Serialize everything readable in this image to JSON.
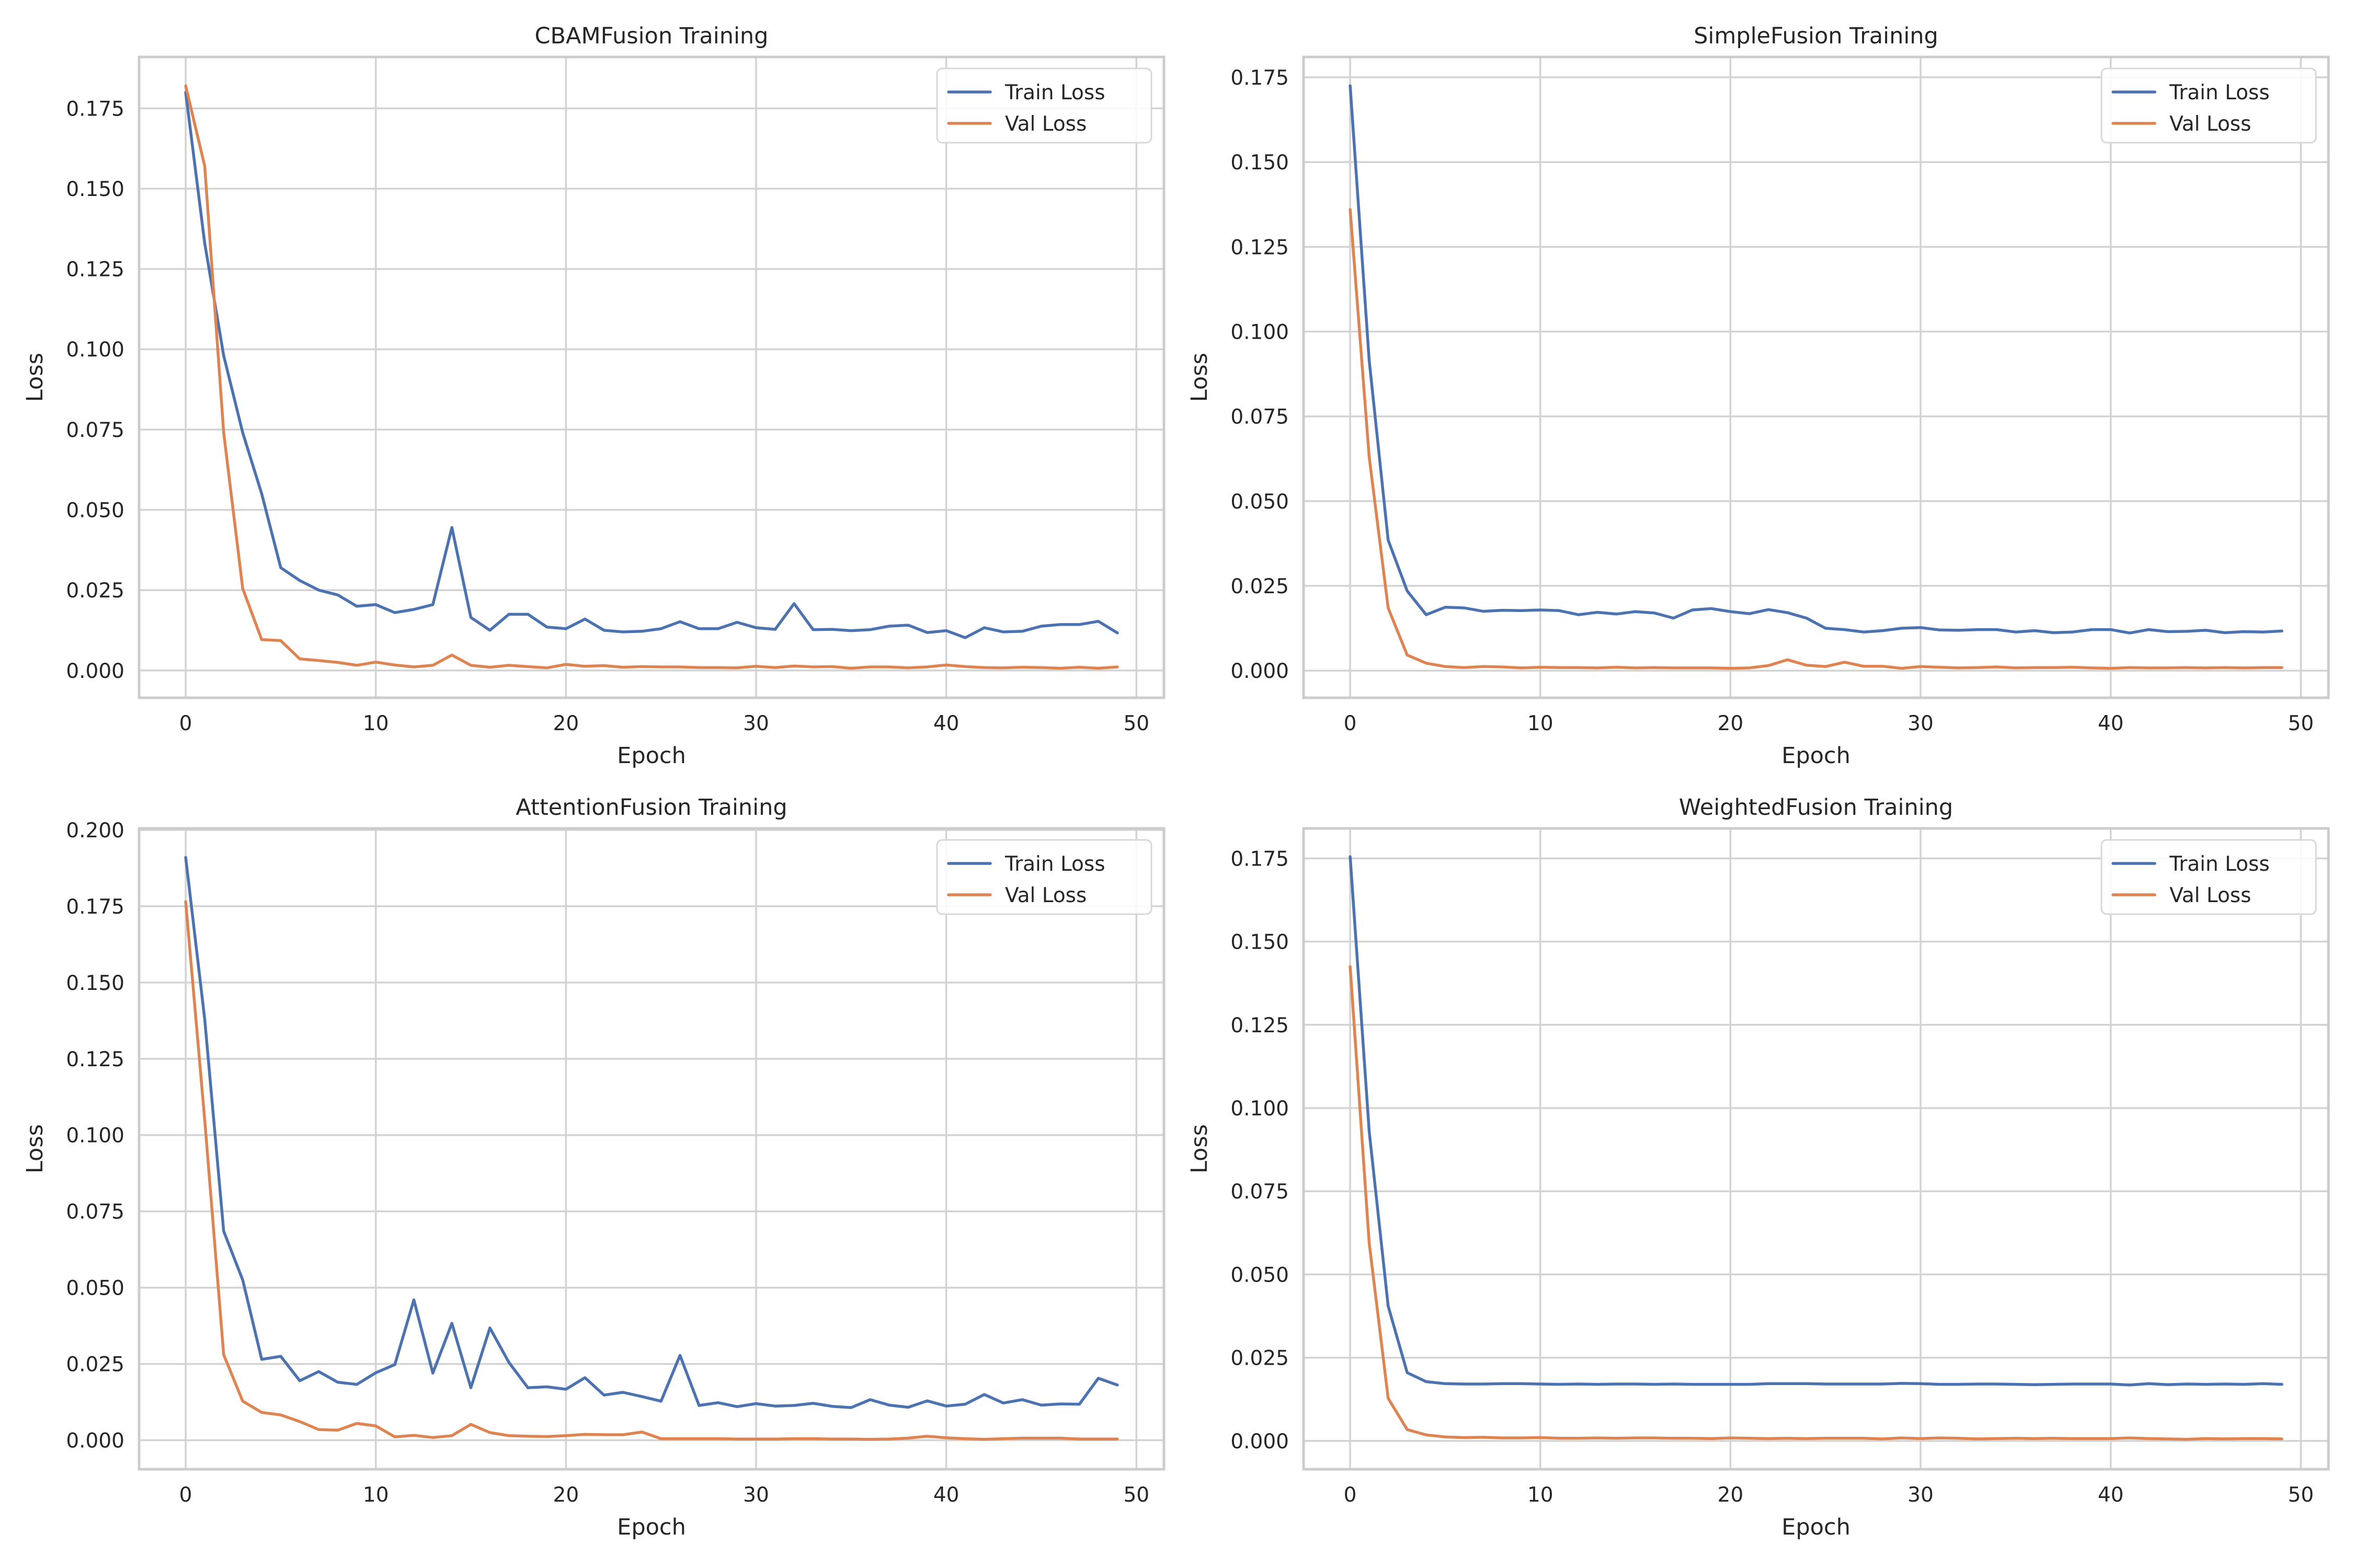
{
  "colors": {
    "train": "#4c72b0",
    "val": "#dd8452"
  },
  "legend": {
    "train_label": "Train Loss",
    "val_label": "Val Loss",
    "placement": "top-right"
  },
  "chart_data": [
    {
      "type": "line",
      "title": "CBAMFusion Training",
      "xlabel": "Epoch",
      "ylabel": "Loss",
      "xlim": [
        -2.45,
        51.45
      ],
      "ylim": [
        -0.0085,
        0.191
      ],
      "xticks": [
        0,
        10,
        20,
        30,
        40,
        50
      ],
      "yticks": [
        0,
        0.025,
        0.05,
        0.075,
        0.1,
        0.125,
        0.15,
        0.175
      ],
      "ytick_labels": [
        "0.000",
        "0.025",
        "0.050",
        "0.075",
        "0.100",
        "0.125",
        "0.150",
        "0.175"
      ],
      "grid": true,
      "series": [
        {
          "name": "Train Loss",
          "values": [
            0.18,
            0.133,
            0.098,
            0.074,
            0.055,
            0.032,
            0.028,
            0.025,
            0.0235,
            0.02,
            0.0205,
            0.018,
            0.019,
            0.0205,
            0.0445,
            0.0165,
            0.0125,
            0.0175,
            0.0175,
            0.0135,
            0.013,
            0.016,
            0.0125,
            0.012,
            0.0122,
            0.013,
            0.0152,
            0.013,
            0.013,
            0.015,
            0.0133,
            0.0128,
            0.0208,
            0.0127,
            0.0128,
            0.0124,
            0.0127,
            0.0138,
            0.0141,
            0.0118,
            0.0124,
            0.0102,
            0.0133,
            0.012,
            0.0122,
            0.0138,
            0.0143,
            0.0143,
            0.0153,
            0.0117
          ]
        },
        {
          "name": "Val Loss",
          "values": [
            0.182,
            0.157,
            0.074,
            0.0255,
            0.0096,
            0.0093,
            0.0036,
            0.0031,
            0.0025,
            0.0016,
            0.0026,
            0.0017,
            0.0011,
            0.0016,
            0.0048,
            0.0016,
            0.001,
            0.0016,
            0.0012,
            0.0008,
            0.0019,
            0.0013,
            0.0015,
            0.001,
            0.0012,
            0.0011,
            0.0011,
            0.0009,
            0.0009,
            0.0008,
            0.0013,
            0.0009,
            0.0014,
            0.0011,
            0.0012,
            0.0007,
            0.0011,
            0.0011,
            0.0008,
            0.0011,
            0.0017,
            0.0012,
            0.0009,
            0.0008,
            0.001,
            0.0009,
            0.0007,
            0.001,
            0.0007,
            0.0011
          ]
        }
      ]
    },
    {
      "type": "line",
      "title": "SimpleFusion Training",
      "xlabel": "Epoch",
      "ylabel": "Loss",
      "xlim": [
        -2.45,
        51.45
      ],
      "ylim": [
        -0.008,
        0.181
      ],
      "xticks": [
        0,
        10,
        20,
        30,
        40,
        50
      ],
      "yticks": [
        0,
        0.025,
        0.05,
        0.075,
        0.1,
        0.125,
        0.15,
        0.175
      ],
      "ytick_labels": [
        "0.000",
        "0.025",
        "0.050",
        "0.075",
        "0.100",
        "0.125",
        "0.150",
        "0.175"
      ],
      "grid": true,
      "series": [
        {
          "name": "Train Loss",
          "values": [
            0.1725,
            0.0915,
            0.0385,
            0.0235,
            0.0165,
            0.0187,
            0.0185,
            0.0175,
            0.0178,
            0.0177,
            0.0179,
            0.0177,
            0.0165,
            0.0172,
            0.0167,
            0.0174,
            0.017,
            0.0155,
            0.0179,
            0.0183,
            0.0174,
            0.0168,
            0.018,
            0.0171,
            0.0155,
            0.0125,
            0.0121,
            0.0114,
            0.0118,
            0.0125,
            0.0127,
            0.012,
            0.0119,
            0.0121,
            0.0121,
            0.0114,
            0.0118,
            0.0112,
            0.0114,
            0.0121,
            0.0121,
            0.0111,
            0.0121,
            0.0115,
            0.0116,
            0.0119,
            0.0112,
            0.0115,
            0.0114,
            0.0117
          ]
        },
        {
          "name": "Val Loss",
          "values": [
            0.136,
            0.063,
            0.0185,
            0.0046,
            0.0022,
            0.0012,
            0.0009,
            0.0012,
            0.0011,
            0.0008,
            0.001,
            0.0009,
            0.0009,
            0.0008,
            0.001,
            0.0008,
            0.0009,
            0.0008,
            0.0008,
            0.0008,
            0.0007,
            0.0008,
            0.0015,
            0.0032,
            0.0016,
            0.0012,
            0.0025,
            0.0013,
            0.0013,
            0.0007,
            0.0012,
            0.001,
            0.0008,
            0.0009,
            0.0011,
            0.0008,
            0.0009,
            0.0009,
            0.001,
            0.0008,
            0.0007,
            0.0009,
            0.0008,
            0.0008,
            0.0009,
            0.0008,
            0.0009,
            0.0008,
            0.0009,
            0.0009
          ]
        }
      ]
    },
    {
      "type": "line",
      "title": "AttentionFusion Training",
      "xlabel": "Epoch",
      "ylabel": "Loss",
      "xlim": [
        -2.45,
        51.45
      ],
      "ylim": [
        -0.0095,
        0.2005
      ],
      "xticks": [
        0,
        10,
        20,
        30,
        40,
        50
      ],
      "yticks": [
        0,
        0.025,
        0.05,
        0.075,
        0.1,
        0.125,
        0.15,
        0.175,
        0.2
      ],
      "ytick_labels": [
        "0.000",
        "0.025",
        "0.050",
        "0.075",
        "0.100",
        "0.125",
        "0.150",
        "0.175",
        "0.200"
      ],
      "grid": true,
      "series": [
        {
          "name": "Train Loss",
          "values": [
            0.191,
            0.138,
            0.0685,
            0.0525,
            0.0265,
            0.0275,
            0.0195,
            0.0225,
            0.019,
            0.0183,
            0.0221,
            0.0248,
            0.046,
            0.022,
            0.0383,
            0.0172,
            0.0368,
            0.0255,
            0.0172,
            0.0175,
            0.0167,
            0.0205,
            0.0148,
            0.0157,
            0.0143,
            0.0128,
            0.0278,
            0.0114,
            0.0123,
            0.011,
            0.012,
            0.0112,
            0.0114,
            0.0121,
            0.0111,
            0.0107,
            0.0133,
            0.0115,
            0.0108,
            0.0129,
            0.0112,
            0.0118,
            0.015,
            0.0122,
            0.0133,
            0.0115,
            0.0119,
            0.0118,
            0.0203,
            0.0181
          ]
        },
        {
          "name": "Val Loss",
          "values": [
            0.1765,
            0.105,
            0.028,
            0.0128,
            0.0091,
            0.0083,
            0.0061,
            0.0035,
            0.0033,
            0.0055,
            0.0047,
            0.0011,
            0.0016,
            0.0009,
            0.0015,
            0.0052,
            0.0025,
            0.0015,
            0.0013,
            0.0012,
            0.0015,
            0.0019,
            0.0018,
            0.0018,
            0.0027,
            0.0005,
            0.0005,
            0.0005,
            0.0005,
            0.0004,
            0.0004,
            0.0004,
            0.0005,
            0.0005,
            0.0004,
            0.0004,
            0.0003,
            0.0004,
            0.0007,
            0.0013,
            0.0008,
            0.0005,
            0.0003,
            0.0005,
            0.0007,
            0.0007,
            0.0007,
            0.0004,
            0.0004,
            0.0004
          ]
        }
      ]
    },
    {
      "type": "line",
      "title": "WeightedFusion Training",
      "xlabel": "Epoch",
      "ylabel": "Loss",
      "xlim": [
        -2.45,
        51.45
      ],
      "ylim": [
        -0.0085,
        0.184
      ],
      "xticks": [
        0,
        10,
        20,
        30,
        40,
        50
      ],
      "yticks": [
        0,
        0.025,
        0.05,
        0.075,
        0.1,
        0.125,
        0.15,
        0.175
      ],
      "ytick_labels": [
        "0.000",
        "0.025",
        "0.050",
        "0.075",
        "0.100",
        "0.125",
        "0.150",
        "0.175"
      ],
      "grid": true,
      "series": [
        {
          "name": "Train Loss",
          "values": [
            0.1755,
            0.093,
            0.0405,
            0.0205,
            0.0178,
            0.0172,
            0.0171,
            0.0171,
            0.0172,
            0.0172,
            0.0171,
            0.017,
            0.0171,
            0.017,
            0.0171,
            0.0171,
            0.017,
            0.0171,
            0.017,
            0.017,
            0.017,
            0.017,
            0.0172,
            0.0172,
            0.0172,
            0.0171,
            0.0171,
            0.0171,
            0.0171,
            0.0173,
            0.0172,
            0.017,
            0.017,
            0.0171,
            0.0171,
            0.017,
            0.0169,
            0.017,
            0.0171,
            0.0171,
            0.0171,
            0.0168,
            0.0172,
            0.0169,
            0.0171,
            0.017,
            0.0171,
            0.017,
            0.0172,
            0.017
          ]
        },
        {
          "name": "Val Loss",
          "values": [
            0.1425,
            0.0595,
            0.0128,
            0.0034,
            0.0018,
            0.0012,
            0.001,
            0.0011,
            0.0009,
            0.0009,
            0.001,
            0.0008,
            0.0008,
            0.0009,
            0.0008,
            0.0009,
            0.0009,
            0.0008,
            0.0008,
            0.0007,
            0.0009,
            0.0008,
            0.0007,
            0.0008,
            0.0007,
            0.0008,
            0.0008,
            0.0008,
            0.0006,
            0.0009,
            0.0007,
            0.0009,
            0.0008,
            0.0006,
            0.0007,
            0.0008,
            0.0007,
            0.0008,
            0.0007,
            0.0007,
            0.0007,
            0.0009,
            0.0007,
            0.0006,
            0.0005,
            0.0007,
            0.0006,
            0.0007,
            0.0007,
            0.0006
          ]
        }
      ]
    }
  ]
}
